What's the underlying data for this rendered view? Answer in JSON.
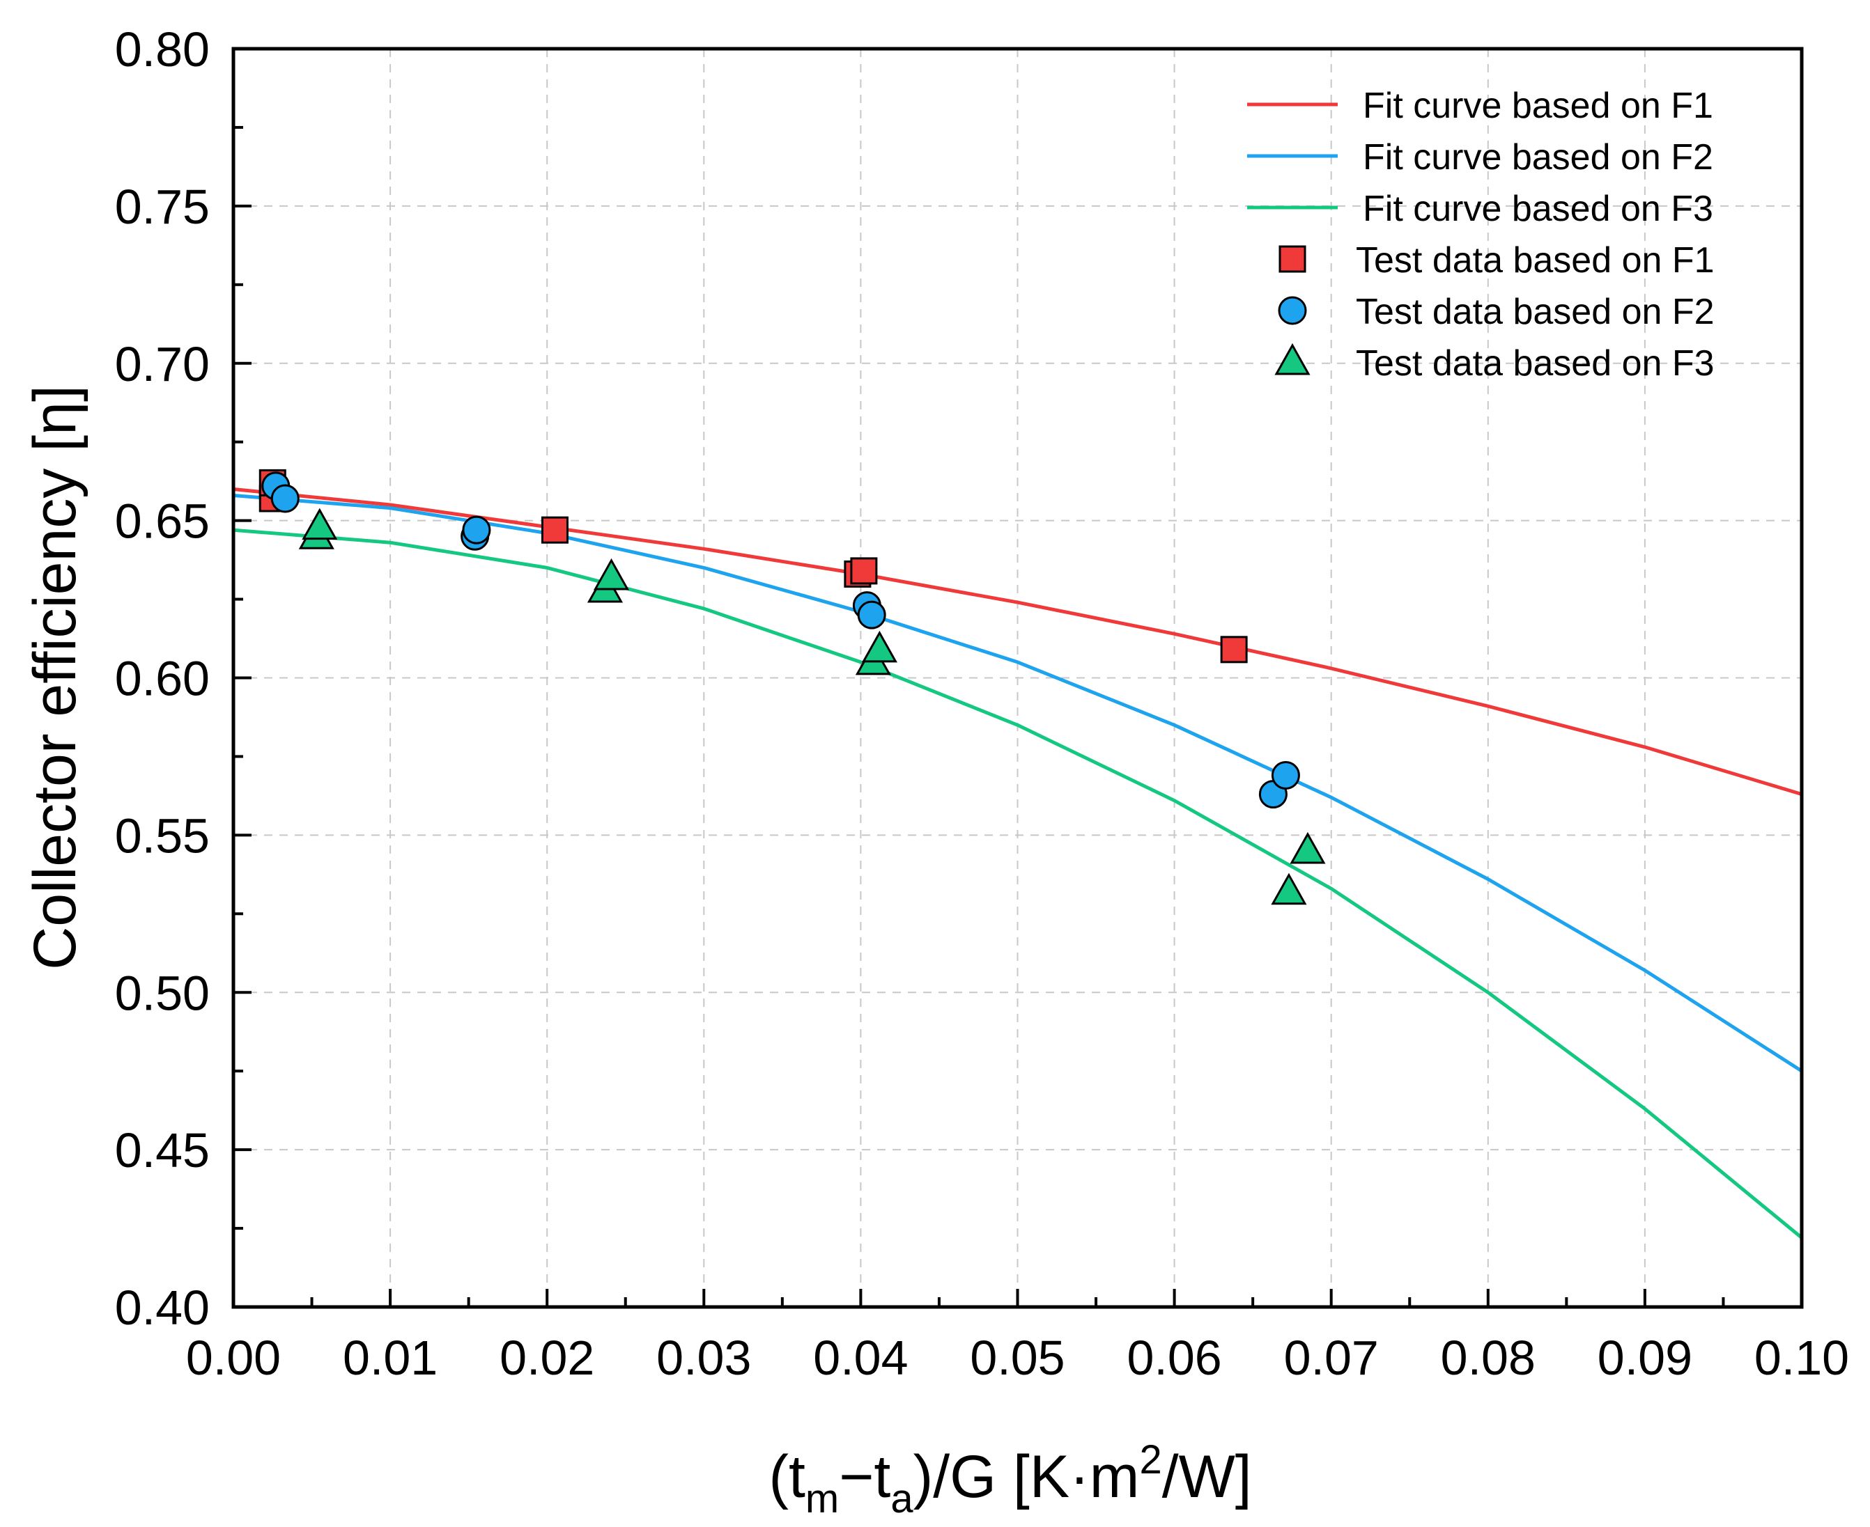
{
  "chart_data": {
    "type": "scatter",
    "title": "",
    "xlabel": {
      "prefix": "(t",
      "sub1": "m",
      "mid": "−t",
      "sub2": "a",
      "after": ")/G [K·m",
      "sup": "2",
      "suffix": "/W]"
    },
    "ylabel": "Collector efficiency [η]",
    "xlim": [
      0,
      0.1
    ],
    "ylim": [
      0.4,
      0.8
    ],
    "xticks": [
      "0.00",
      "0.01",
      "0.02",
      "0.03",
      "0.04",
      "0.05",
      "0.06",
      "0.07",
      "0.08",
      "0.09",
      "0.10"
    ],
    "yticks": [
      "0.40",
      "0.45",
      "0.50",
      "0.55",
      "0.60",
      "0.65",
      "0.70",
      "0.75",
      "0.80"
    ],
    "grid": true,
    "legend_position": "top-right",
    "series": [
      {
        "name": "Fit curve based on F1",
        "kind": "line",
        "color": "#f03a3a",
        "x": [
          0,
          0.01,
          0.02,
          0.03,
          0.04,
          0.05,
          0.06,
          0.07,
          0.08,
          0.09,
          0.1
        ],
        "y": [
          0.66,
          0.655,
          0.648,
          0.641,
          0.633,
          0.624,
          0.614,
          0.603,
          0.591,
          0.578,
          0.563
        ]
      },
      {
        "name": "Fit curve based on F2",
        "kind": "line",
        "color": "#1ea3ef",
        "x": [
          0,
          0.01,
          0.02,
          0.03,
          0.04,
          0.05,
          0.06,
          0.07,
          0.08,
          0.09,
          0.1
        ],
        "y": [
          0.658,
          0.654,
          0.646,
          0.635,
          0.621,
          0.605,
          0.585,
          0.562,
          0.536,
          0.507,
          0.475
        ]
      },
      {
        "name": "Fit curve based on F3",
        "kind": "line",
        "color": "#14c882",
        "x": [
          0,
          0.01,
          0.02,
          0.03,
          0.04,
          0.05,
          0.06,
          0.07,
          0.08,
          0.09,
          0.1
        ],
        "y": [
          0.647,
          0.643,
          0.635,
          0.622,
          0.605,
          0.585,
          0.561,
          0.533,
          0.5,
          0.463,
          0.422
        ]
      },
      {
        "name": "Test data based on F1",
        "kind": "scatter",
        "marker": "square",
        "color": "#f03a3a",
        "x": [
          0.0025,
          0.0025,
          0.0205,
          0.0398,
          0.0402,
          0.0638
        ],
        "y": [
          0.657,
          0.662,
          0.647,
          0.633,
          0.634,
          0.609
        ]
      },
      {
        "name": "Test data based on F2",
        "kind": "scatter",
        "marker": "circle",
        "color": "#1ea3ef",
        "x": [
          0.0027,
          0.0033,
          0.0154,
          0.0155,
          0.0404,
          0.0407,
          0.0663,
          0.0671
        ],
        "y": [
          0.661,
          0.657,
          0.645,
          0.647,
          0.623,
          0.62,
          0.563,
          0.569
        ]
      },
      {
        "name": "Test data based on F3",
        "kind": "scatter",
        "marker": "triangle",
        "color": "#14c882",
        "x": [
          0.0053,
          0.0055,
          0.0237,
          0.0241,
          0.0408,
          0.0412,
          0.0673,
          0.0685
        ],
        "y": [
          0.645,
          0.648,
          0.628,
          0.632,
          0.605,
          0.609,
          0.532,
          0.545
        ]
      }
    ]
  }
}
